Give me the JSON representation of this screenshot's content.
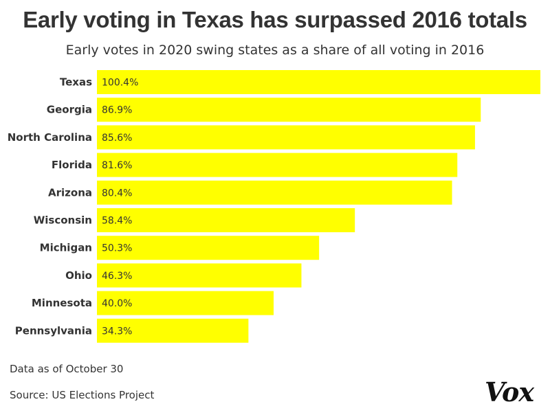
{
  "header": {
    "title": "Early voting in Texas has surpassed 2016 totals",
    "subtitle": "Early votes in 2020 swing states as a share of all voting in 2016"
  },
  "chart_data": {
    "type": "bar",
    "orientation": "horizontal",
    "categories": [
      "Texas",
      "Georgia",
      "North Carolina",
      "Florida",
      "Arizona",
      "Wisconsin",
      "Michigan",
      "Ohio",
      "Minnesota",
      "Pennsylvania"
    ],
    "values": [
      100.4,
      86.9,
      85.6,
      81.6,
      80.4,
      58.4,
      50.3,
      46.3,
      40.0,
      34.3
    ],
    "value_labels": [
      "100.4%",
      "86.9%",
      "85.6%",
      "81.6%",
      "80.4%",
      "58.4%",
      "50.3%",
      "46.3%",
      "40.0%",
      "34.3%"
    ],
    "title": "Early voting in Texas has surpassed 2016 totals",
    "subtitle": "Early votes in 2020 swing states as a share of all voting in 2016",
    "xlabel": "",
    "ylabel": "",
    "xlim": [
      0,
      100.4
    ],
    "grid": false,
    "bar_color": "#ffff00"
  },
  "footer": {
    "as_of": "Data as of October 30",
    "source": "Source: US Elections Project",
    "logo": "Vox"
  }
}
